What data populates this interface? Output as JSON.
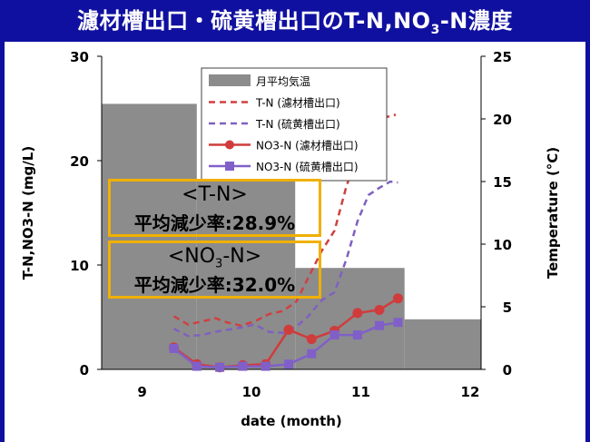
{
  "title": {
    "main": "濾材槽出口・硫黄槽出口のT-N,NO",
    "sub": "3",
    "tail": "-N濃度"
  },
  "colors": {
    "banner": "#1010a0",
    "bars": "#8c8c8c",
    "tn_filter": "#d04040",
    "tn_sulfur": "#8060c0",
    "no3_filter": "#d03c3c",
    "no3_sulfur": "#8060c8",
    "annotation_border": "#f0b000"
  },
  "annotations": [
    {
      "line1": "<T-N>",
      "line2": "平均減少率:28.9%"
    },
    {
      "line1": "<NO3-N>",
      "line2": "平均減少率:32.0%"
    }
  ],
  "chart_data": {
    "type": "line",
    "xlabel": "date (month)",
    "ylabel_left": "T-N,NO3-N (mg/L)",
    "ylabel_right": "Temperature (°C)",
    "x_ticks": [
      "9",
      "10",
      "11",
      "12"
    ],
    "xlim": [
      8.63,
      12.1
    ],
    "ylim_left": [
      0,
      30
    ],
    "ylim_right": [
      0,
      25
    ],
    "y_ticks_left": [
      0,
      10,
      20,
      30
    ],
    "y_ticks_right": [
      0,
      5,
      10,
      15,
      20,
      25
    ],
    "legend_position": "top-center",
    "bars": {
      "name": "月平均気温",
      "axis": "right",
      "segments": [
        {
          "month": "9",
          "x0": 8.63,
          "x1": 9.5,
          "value": 21.2
        },
        {
          "month": "10",
          "x0": 9.5,
          "x1": 10.4,
          "value": 15.0
        },
        {
          "month": "11",
          "x0": 10.4,
          "x1": 11.4,
          "value": 8.1
        },
        {
          "month": "12",
          "x0": 11.4,
          "x1": 12.1,
          "value": 4.0
        }
      ]
    },
    "series": [
      {
        "name": "T-N (濾材槽出口)",
        "style": "dashed",
        "axis": "left",
        "points": [
          [
            9.29,
            5.1
          ],
          [
            9.42,
            4.3
          ],
          [
            9.55,
            4.6
          ],
          [
            9.67,
            4.9
          ],
          [
            9.78,
            4.5
          ],
          [
            9.9,
            4.2
          ],
          [
            10.03,
            4.6
          ],
          [
            10.16,
            5.3
          ],
          [
            10.29,
            5.6
          ],
          [
            10.41,
            6.5
          ],
          [
            10.52,
            8.8
          ],
          [
            10.64,
            11.3
          ],
          [
            10.76,
            13.3
          ],
          [
            10.87,
            17.6
          ],
          [
            10.97,
            20.5
          ],
          [
            11.09,
            22.8
          ],
          [
            11.2,
            24.1
          ],
          [
            11.32,
            24.4
          ]
        ]
      },
      {
        "name": "T-N (硫黄槽出口)",
        "style": "dashed",
        "axis": "left",
        "points": [
          [
            9.29,
            3.9
          ],
          [
            9.42,
            3.2
          ],
          [
            9.55,
            3.3
          ],
          [
            9.67,
            3.6
          ],
          [
            9.78,
            3.8
          ],
          [
            9.9,
            4.0
          ],
          [
            10.03,
            4.3
          ],
          [
            10.16,
            3.6
          ],
          [
            10.29,
            3.5
          ],
          [
            10.41,
            4.1
          ],
          [
            10.52,
            5.1
          ],
          [
            10.64,
            6.6
          ],
          [
            10.76,
            7.4
          ],
          [
            10.87,
            10.6
          ],
          [
            10.97,
            14.2
          ],
          [
            11.07,
            16.7
          ],
          [
            11.17,
            17.4
          ],
          [
            11.27,
            18.0
          ],
          [
            11.34,
            17.9
          ]
        ]
      },
      {
        "name": "NO3-N (濾材槽出口)",
        "style": "solid-circle",
        "axis": "left",
        "points": [
          [
            9.29,
            2.1
          ],
          [
            9.5,
            0.5
          ],
          [
            9.71,
            0.2
          ],
          [
            9.92,
            0.4
          ],
          [
            10.13,
            0.5
          ],
          [
            10.34,
            3.8
          ],
          [
            10.55,
            2.9
          ],
          [
            10.76,
            3.7
          ],
          [
            10.97,
            5.4
          ],
          [
            11.17,
            5.7
          ],
          [
            11.34,
            6.8
          ]
        ]
      },
      {
        "name": "NO3-N (硫黄槽出口)",
        "style": "solid-square",
        "axis": "left",
        "points": [
          [
            9.29,
            2.0
          ],
          [
            9.5,
            0.3
          ],
          [
            9.71,
            0.2
          ],
          [
            9.92,
            0.3
          ],
          [
            10.13,
            0.3
          ],
          [
            10.34,
            0.5
          ],
          [
            10.55,
            1.5
          ],
          [
            10.76,
            3.3
          ],
          [
            10.97,
            3.3
          ],
          [
            11.17,
            4.2
          ],
          [
            11.34,
            4.5
          ]
        ]
      }
    ],
    "legend": [
      {
        "label": "月平均気温",
        "kind": "bar"
      },
      {
        "label": "T-N (濾材槽出口)",
        "kind": "dashed"
      },
      {
        "label": "T-N (硫黄槽出口)",
        "kind": "dashed"
      },
      {
        "label": "NO3-N (濾材槽出口)",
        "kind": "circle"
      },
      {
        "label": "NO3-N (硫黄槽出口)",
        "kind": "square"
      }
    ]
  }
}
